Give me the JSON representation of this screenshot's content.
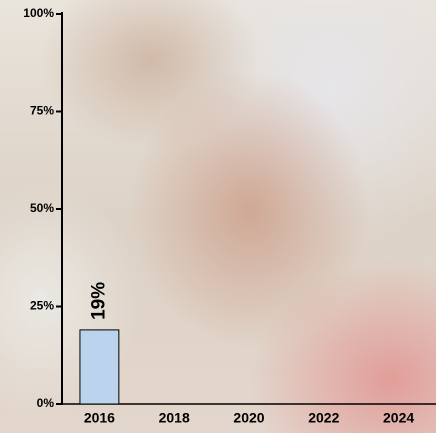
{
  "chart_data": {
    "type": "bar",
    "categories": [
      "2016",
      "2018",
      "2020",
      "2022",
      "2024"
    ],
    "values": [
      19,
      null,
      null,
      null,
      null
    ],
    "value_labels": [
      "19%",
      null,
      null,
      null,
      null
    ],
    "color": "#bcd3ee",
    "ylim": [
      0,
      100
    ],
    "yticks": [
      {
        "value": 0,
        "label": "0%"
      },
      {
        "value": 25,
        "label": "25%"
      },
      {
        "value": 50,
        "label": "50%"
      },
      {
        "value": 75,
        "label": "75%"
      },
      {
        "value": 100,
        "label": "100%"
      }
    ]
  }
}
